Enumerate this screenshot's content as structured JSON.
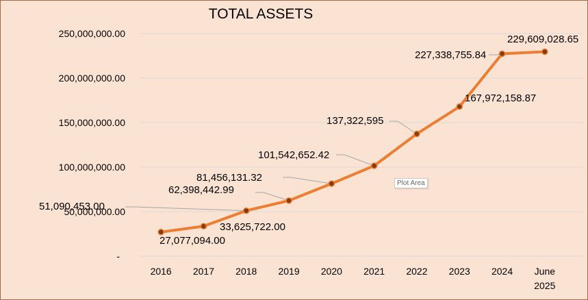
{
  "chart_data": {
    "type": "line",
    "title": "TOTAL ASSETS",
    "categories": [
      "2016",
      "2017",
      "2018",
      "2019",
      "2020",
      "2021",
      "2022",
      "2023",
      "2024",
      "June 2025"
    ],
    "values": [
      27077094.0,
      33625722.0,
      51090453.0,
      62398442.99,
      81456131.32,
      101542652.42,
      137322595,
      167972158.87,
      227338755.84,
      229609028.65
    ],
    "data_labels": [
      "27,077,094.00",
      "33,625,722.00",
      "51,090,453.00",
      "62,398,442.99",
      "81,456,131.32",
      "101,542,652.42",
      "137,322,595",
      "167,972,158.87",
      "227,338,755.84",
      "229,609,028.65"
    ],
    "y_ticks": [
      "-",
      "50,000,000.00",
      "100,000,000.00",
      "150,000,000.00",
      "200,000,000.00",
      "250,000,000.00"
    ],
    "ylim": [
      0,
      250000000
    ],
    "grid": true,
    "line_color": "#ed7d31",
    "marker_color": "#843c0c",
    "background_color": "#fbe3d4",
    "legend": "none"
  },
  "tooltip": "Plot Area"
}
